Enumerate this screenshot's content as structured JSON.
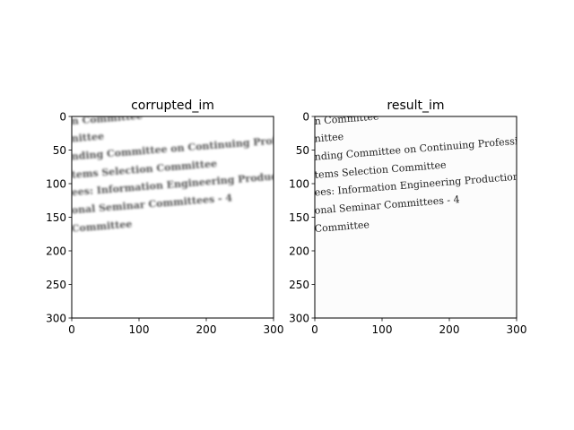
{
  "chart_data": [
    {
      "type": "image",
      "title": "corrupted_im",
      "xlim": [
        0,
        300
      ],
      "ylim": [
        300,
        0
      ],
      "xticks": [
        "0",
        "100",
        "200",
        "300"
      ],
      "yticks": [
        "0",
        "50",
        "100",
        "150",
        "200",
        "250",
        "300"
      ],
      "image_text_lines": [
        "n Committee",
        "nittee",
        "nding Committee on Continuing Professio",
        "tems Selection Committee",
        "ees: Information Engineering Production",
        "onal Seminar Committees - 4",
        "Committee"
      ]
    },
    {
      "type": "image",
      "title": "result_im",
      "xlim": [
        0,
        300
      ],
      "ylim": [
        300,
        0
      ],
      "xticks": [
        "0",
        "100",
        "200",
        "300"
      ],
      "yticks": [
        "0",
        "50",
        "100",
        "150",
        "200",
        "250",
        "300"
      ],
      "image_text_lines": [
        "n Committee",
        "nittee",
        "nding Committee on Continuing Professio",
        "tems Selection Committee",
        "ees: Information Engineering Production",
        "onal Seminar Committees - 4",
        "Committee"
      ]
    }
  ],
  "colors": {
    "background": "#ffffff",
    "axis": "#000000",
    "corrupted_text": "#555555",
    "result_text": "#222222",
    "result_background": "#fcfcfc"
  }
}
